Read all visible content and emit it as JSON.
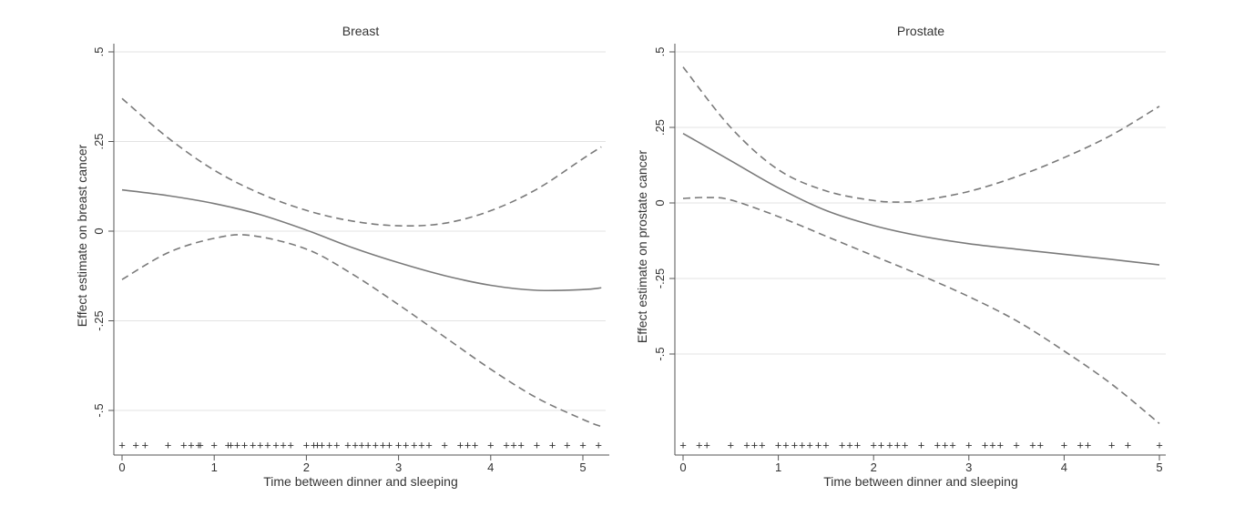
{
  "chart_data": [
    {
      "type": "line",
      "title": "Breast",
      "xlabel": "Time between dinner and sleeping",
      "ylabel": "Effect estimate on breast cancer",
      "xlim": [
        0,
        5.2
      ],
      "ylim": [
        -0.6,
        0.52
      ],
      "x_ticks": [
        0,
        1,
        2,
        3,
        4,
        5
      ],
      "x_tick_labels": [
        "0",
        "1",
        "2",
        "3",
        "4",
        "5"
      ],
      "y_ticks": [
        -0.5,
        -0.25,
        0,
        0.25,
        0.5
      ],
      "y_tick_labels": [
        "-.5",
        "-.25",
        "0",
        ".25",
        ".5"
      ],
      "grid": true,
      "series": [
        {
          "name": "estimate",
          "style": "solid",
          "x": [
            0,
            0.5,
            1,
            1.5,
            2,
            2.5,
            3,
            3.5,
            4,
            4.5,
            5,
            5.2
          ],
          "y": [
            0.115,
            0.099,
            0.077,
            0.046,
            0.003,
            -0.046,
            -0.088,
            -0.124,
            -0.151,
            -0.165,
            -0.163,
            -0.158
          ]
        },
        {
          "name": "upper 95% CI",
          "style": "dashed",
          "x": [
            0,
            0.5,
            1,
            1.5,
            2,
            2.5,
            3,
            3.5,
            4,
            4.5,
            5,
            5.2
          ],
          "y": [
            0.37,
            0.26,
            0.17,
            0.105,
            0.058,
            0.028,
            0.015,
            0.022,
            0.057,
            0.117,
            0.202,
            0.235
          ]
        },
        {
          "name": "lower 95% CI",
          "style": "dashed",
          "x": [
            0,
            0.5,
            1,
            1.4,
            2,
            2.5,
            3,
            3.5,
            4,
            4.5,
            5,
            5.2
          ],
          "y": [
            -0.135,
            -0.06,
            -0.02,
            -0.012,
            -0.05,
            -0.12,
            -0.205,
            -0.295,
            -0.385,
            -0.465,
            -0.525,
            -0.545
          ]
        }
      ],
      "rug_x": [
        0,
        0.15,
        0.25,
        0.5,
        0.67,
        0.75,
        0.83,
        0.85,
        1.0,
        1.15,
        1.18,
        1.25,
        1.33,
        1.42,
        1.5,
        1.58,
        1.67,
        1.75,
        1.83,
        2.0,
        2.08,
        2.12,
        2.17,
        2.25,
        2.33,
        2.45,
        2.53,
        2.6,
        2.67,
        2.75,
        2.83,
        2.9,
        3.0,
        3.08,
        3.17,
        3.25,
        3.33,
        3.5,
        3.67,
        3.75,
        3.83,
        4.0,
        4.17,
        4.25,
        4.33,
        4.5,
        4.67,
        4.83,
        5.0,
        5.17
      ],
      "rug_symbol": "+"
    },
    {
      "type": "line",
      "title": "Prostate",
      "xlabel": "Time between dinner and sleeping",
      "ylabel": "Effect estimate on prostate cancer",
      "xlim": [
        0,
        5
      ],
      "ylim": [
        -0.81,
        0.52
      ],
      "x_ticks": [
        0,
        1,
        2,
        3,
        4,
        5
      ],
      "x_tick_labels": [
        "0",
        "1",
        "2",
        "3",
        "4",
        "5"
      ],
      "y_ticks": [
        -0.5,
        -0.25,
        0,
        0.25,
        0.5
      ],
      "y_tick_labels": [
        "-.5",
        "-.25",
        "0",
        ".25",
        ".5"
      ],
      "grid": true,
      "series": [
        {
          "name": "estimate",
          "style": "solid",
          "x": [
            0,
            0.5,
            1,
            1.5,
            2,
            2.5,
            3,
            3.5,
            4,
            4.5,
            5
          ],
          "y": [
            0.23,
            0.14,
            0.05,
            -0.025,
            -0.075,
            -0.11,
            -0.135,
            -0.153,
            -0.17,
            -0.187,
            -0.205
          ]
        },
        {
          "name": "upper 95% CI",
          "style": "dashed",
          "x": [
            0,
            0.5,
            1,
            1.5,
            2,
            2.3,
            2.5,
            3,
            3.5,
            4,
            4.5,
            5
          ],
          "y": [
            0.45,
            0.25,
            0.11,
            0.04,
            0.008,
            0.003,
            0.008,
            0.038,
            0.087,
            0.15,
            0.225,
            0.32
          ]
        },
        {
          "name": "lower 95% CI",
          "style": "dashed",
          "x": [
            0,
            0.25,
            0.5,
            1,
            1.5,
            2,
            2.5,
            3,
            3.5,
            4,
            4.5,
            5
          ],
          "y": [
            0.015,
            0.018,
            0.01,
            -0.045,
            -0.11,
            -0.175,
            -0.24,
            -0.31,
            -0.39,
            -0.49,
            -0.6,
            -0.73
          ]
        }
      ],
      "rug_x": [
        0,
        0.17,
        0.25,
        0.5,
        0.67,
        0.75,
        0.83,
        1.0,
        1.08,
        1.17,
        1.25,
        1.33,
        1.42,
        1.5,
        1.67,
        1.75,
        1.83,
        2.0,
        2.08,
        2.17,
        2.25,
        2.33,
        2.5,
        2.67,
        2.75,
        2.83,
        3.0,
        3.17,
        3.25,
        3.33,
        3.5,
        3.67,
        3.75,
        4.0,
        4.17,
        4.25,
        4.5,
        4.67,
        5.0
      ],
      "rug_symbol": "+"
    }
  ]
}
